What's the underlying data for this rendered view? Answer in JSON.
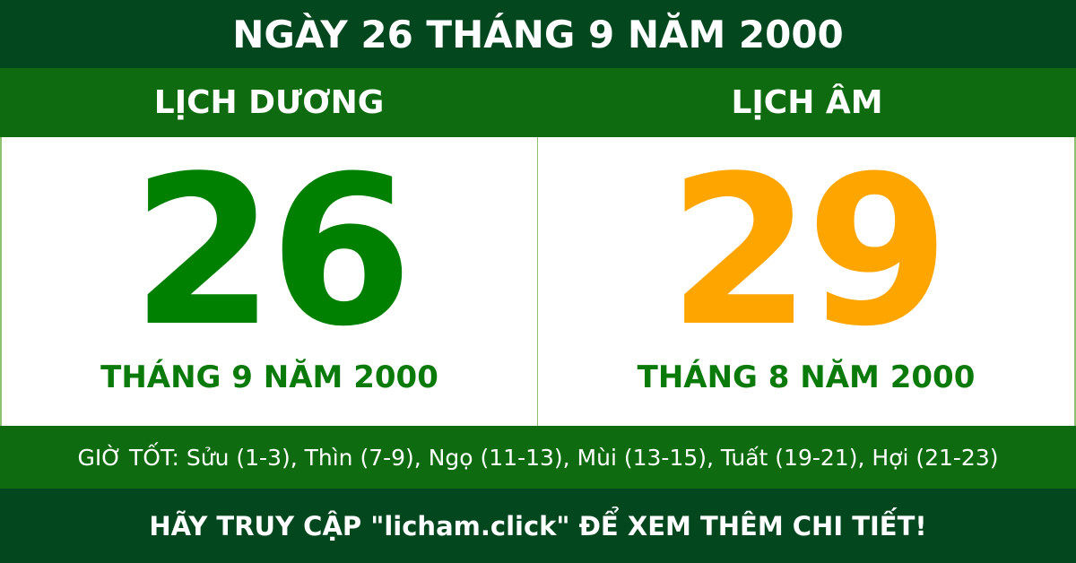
{
  "title": "NGÀY 26 THÁNG 9 NĂM 2000",
  "solar": {
    "label": "LỊCH DƯƠNG",
    "day": "26",
    "month_year": "THÁNG 9 NĂM 2000"
  },
  "lunar": {
    "label": "LỊCH ÂM",
    "day": "29",
    "month_year": "THÁNG 8 NĂM 2000"
  },
  "good_hours": "GIỜ TỐT: Sửu (1-3), Thìn (7-9), Ngọ (11-13), Mùi (13-15), Tuất (19-21), Hợi (21-23)",
  "footer": "HÃY TRUY CẬP \"licham.click\" ĐỂ XEM THÊM CHI TIẾT!",
  "colors": {
    "dark_green": "#03471f",
    "green": "#0f6b10",
    "solar_day": "#008000",
    "lunar_day": "#ffa500"
  }
}
